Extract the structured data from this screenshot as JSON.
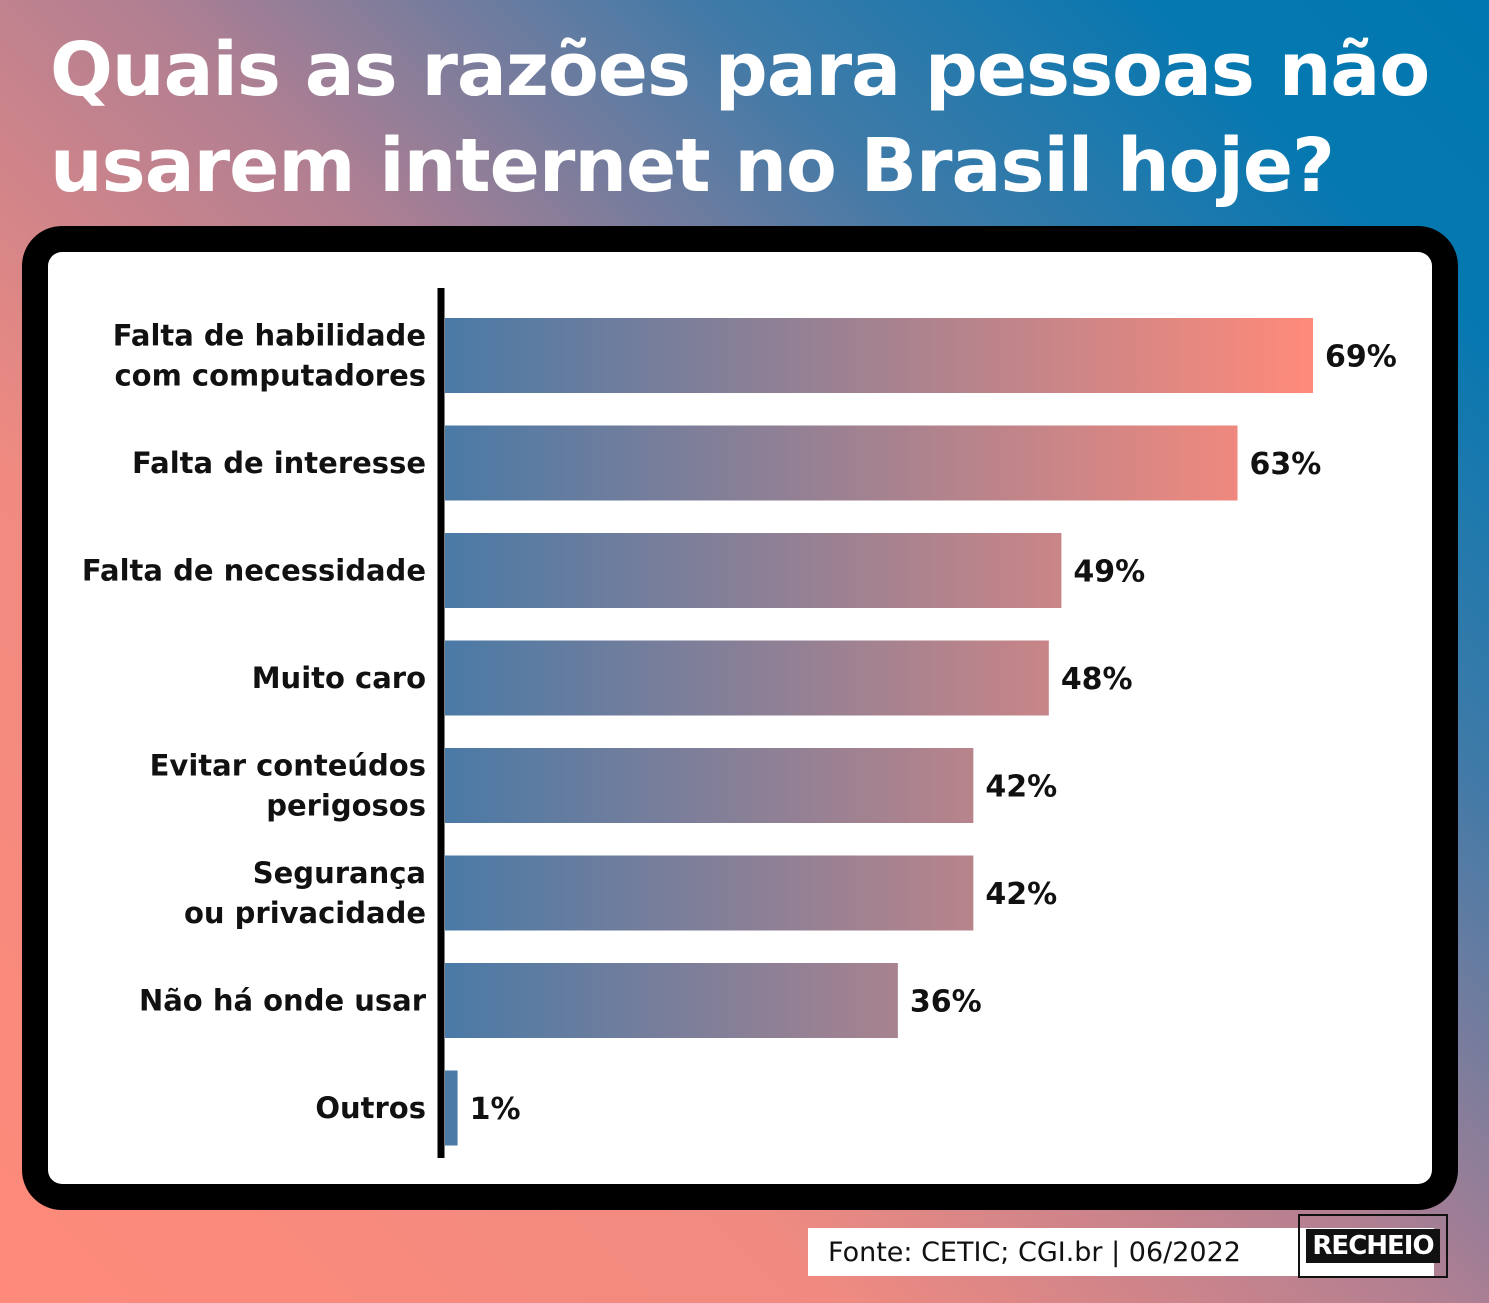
{
  "title": {
    "line1": "Quais as razões para pessoas não",
    "line2": "usarem internet no Brasil hoje?"
  },
  "chart_data": {
    "type": "bar",
    "orientation": "horizontal",
    "categories": [
      [
        "Falta de habilidade",
        "com computadores"
      ],
      [
        "Falta de interesse"
      ],
      [
        "Falta de necessidade"
      ],
      [
        "Muito caro"
      ],
      [
        "Evitar conteúdos",
        "perigosos"
      ],
      [
        "Segurança",
        "ou privacidade"
      ],
      [
        "Não há onde usar"
      ],
      [
        "Outros"
      ]
    ],
    "values": [
      69,
      63,
      49,
      48,
      42,
      42,
      36,
      1
    ],
    "value_labels": [
      "69%",
      "63%",
      "49%",
      "48%",
      "42%",
      "42%",
      "36%",
      "1%"
    ],
    "unit": "%",
    "xlim": [
      0,
      69
    ],
    "grid": false,
    "legend": "none",
    "bar_gradient": [
      "#4a7aa6",
      "#ff8a7a"
    ]
  },
  "footer": {
    "source": "Fonte: CETIC; CGI.br | 06/2022",
    "logo": "RECHEIO"
  }
}
